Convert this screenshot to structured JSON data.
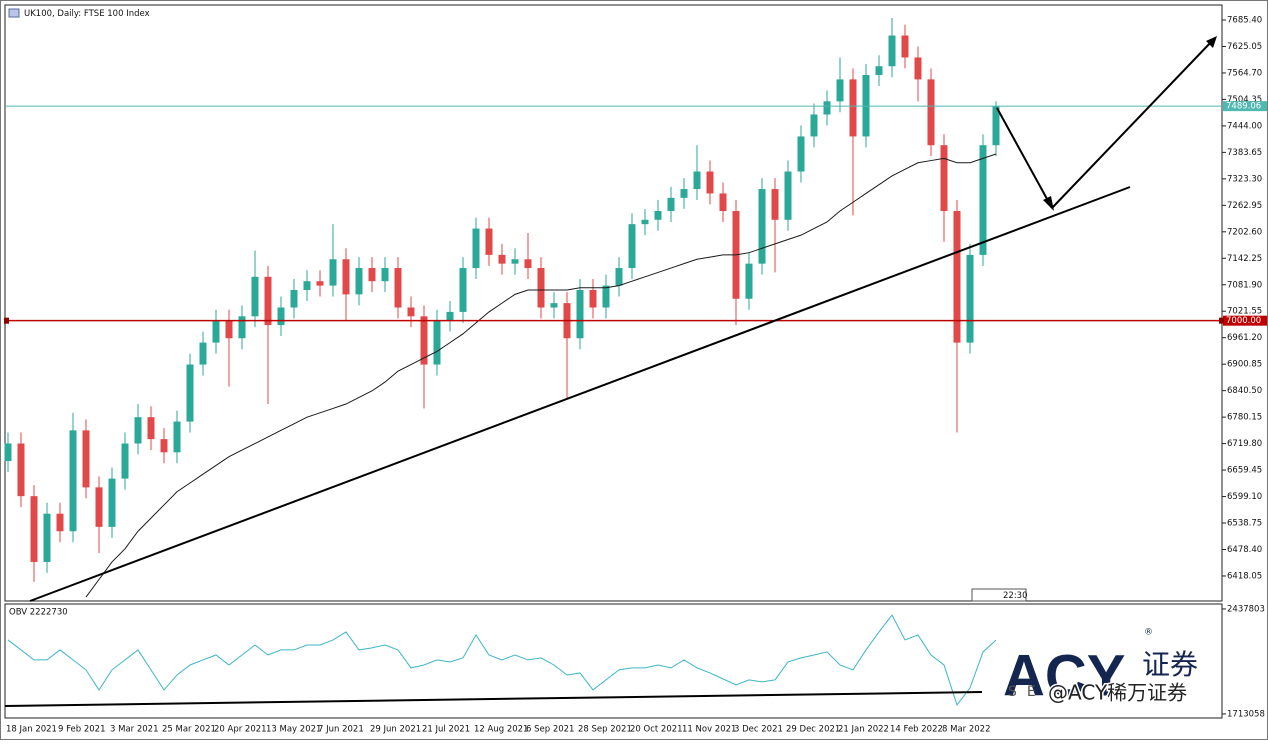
{
  "header": {
    "title": "UK100, Daily: FTSE 100 Index"
  },
  "chart_data": [
    {
      "type": "candlestick",
      "categories": [
        "18 Jan 2021",
        null,
        null,
        null,
        "9 Feb 2021",
        null,
        null,
        null,
        "3 Mar 2021",
        null,
        null,
        null,
        "25 Mar 2021",
        null,
        null,
        null,
        "20 Apr 2021",
        null,
        null,
        null,
        "13 May 2021",
        null,
        null,
        null,
        "7 Jun 2021",
        null,
        null,
        null,
        "29 Jun 2021",
        null,
        null,
        null,
        "21 Jul 2021",
        null,
        null,
        null,
        "12 Aug 2021",
        null,
        null,
        null,
        "6 Sep 2021",
        null,
        null,
        null,
        "28 Sep 2021",
        null,
        null,
        null,
        "20 Oct 2021",
        null,
        null,
        null,
        "11 Nov 2021",
        null,
        null,
        null,
        "3 Dec 2021",
        null,
        null,
        null,
        "29 Dec 2021",
        null,
        null,
        null,
        "21 Jan 2022",
        null,
        null,
        null,
        "14 Feb 2022",
        null,
        null,
        null,
        "8 Mar 2022",
        null,
        null,
        null,
        null
      ],
      "open": [
        6680,
        6720,
        6600,
        6450,
        6560,
        6520,
        6750,
        6620,
        6530,
        6640,
        6720,
        6780,
        6730,
        6700,
        6770,
        6900,
        6950,
        7000,
        6960,
        7010,
        7100,
        6990,
        7030,
        7070,
        7090,
        7080,
        7140,
        7060,
        7120,
        7090,
        7120,
        7030,
        7010,
        6900,
        7000,
        7020,
        7120,
        7210,
        7150,
        7130,
        7140,
        7120,
        7030,
        7040,
        6960,
        7070,
        7030,
        7080,
        7120,
        7220,
        7230,
        7250,
        7280,
        7300,
        7340,
        7290,
        7250,
        7050,
        7130,
        7300,
        7230,
        7340,
        7420,
        7470,
        7500,
        7550,
        7420,
        7560,
        7580,
        7650,
        7600,
        7550,
        7400,
        7250,
        6950,
        7150,
        7400
      ],
      "high": [
        6745,
        6745,
        6625,
        6585,
        6585,
        6790,
        6775,
        6645,
        6665,
        6745,
        6810,
        6805,
        6755,
        6795,
        6925,
        6975,
        7025,
        7025,
        7035,
        7160,
        7125,
        7055,
        7095,
        7115,
        7115,
        7220,
        7165,
        7145,
        7145,
        7145,
        7145,
        7055,
        7035,
        7025,
        7045,
        7145,
        7235,
        7235,
        7175,
        7165,
        7200,
        7145,
        7065,
        7065,
        7095,
        7095,
        7105,
        7145,
        7245,
        7255,
        7275,
        7305,
        7325,
        7400,
        7365,
        7315,
        7275,
        7155,
        7325,
        7325,
        7365,
        7445,
        7495,
        7525,
        7600,
        7575,
        7585,
        7605,
        7690,
        7675,
        7625,
        7575,
        7425,
        7275,
        7175,
        7425,
        7500
      ],
      "low": [
        6655,
        6575,
        6405,
        6425,
        6495,
        6495,
        6595,
        6470,
        6505,
        6615,
        6695,
        6705,
        6675,
        6675,
        6745,
        6875,
        6925,
        6850,
        6935,
        6985,
        6810,
        6965,
        7005,
        7045,
        7055,
        7055,
        7000,
        7035,
        7065,
        7065,
        7005,
        6985,
        6800,
        6875,
        6975,
        6995,
        7095,
        7125,
        7105,
        7105,
        7095,
        7005,
        7005,
        6820,
        6935,
        7005,
        7005,
        7055,
        7095,
        7195,
        7205,
        7225,
        7255,
        7275,
        7265,
        7225,
        6990,
        7025,
        7105,
        7110,
        7205,
        7315,
        7395,
        7445,
        7475,
        7240,
        7395,
        7535,
        7555,
        7575,
        7500,
        7375,
        7180,
        6745,
        6925,
        7125,
        7375
      ],
      "close": [
        6720,
        6600,
        6450,
        6560,
        6520,
        6750,
        6620,
        6530,
        6640,
        6720,
        6780,
        6730,
        6700,
        6770,
        6900,
        6950,
        7000,
        6960,
        7010,
        7100,
        6990,
        7030,
        7070,
        7090,
        7080,
        7140,
        7060,
        7120,
        7090,
        7120,
        7030,
        7010,
        6900,
        7000,
        7020,
        7120,
        7210,
        7150,
        7130,
        7140,
        7120,
        7030,
        7040,
        6960,
        7070,
        7030,
        7080,
        7120,
        7220,
        7230,
        7250,
        7280,
        7300,
        7340,
        7290,
        7250,
        7050,
        7130,
        7300,
        7230,
        7340,
        7420,
        7470,
        7500,
        7550,
        7420,
        7560,
        7580,
        7650,
        7600,
        7550,
        7400,
        7250,
        6950,
        7150,
        7400,
        7489.06
      ],
      "ma": [
        null,
        null,
        null,
        null,
        null,
        null,
        6370,
        6410,
        6450,
        6480,
        6520,
        6550,
        6580,
        6610,
        6630,
        6650,
        6670,
        6690,
        6705,
        6720,
        6735,
        6750,
        6765,
        6780,
        6790,
        6800,
        6810,
        6825,
        6840,
        6860,
        6885,
        6900,
        6915,
        6930,
        6950,
        6970,
        6995,
        7020,
        7040,
        7060,
        7070,
        7070,
        7070,
        7070,
        7075,
        7075,
        7075,
        7080,
        7090,
        7100,
        7110,
        7120,
        7130,
        7140,
        7145,
        7150,
        7150,
        7155,
        7165,
        7175,
        7185,
        7195,
        7210,
        7225,
        7250,
        7270,
        7290,
        7310,
        7330,
        7345,
        7360,
        7365,
        7370,
        7360,
        7360,
        7370,
        7380
      ],
      "ma_color": "#1a1a1a",
      "up_color": "#2aa898",
      "down_color": "#e0484a",
      "ylim": [
        6361,
        7719.6
      ],
      "yticks": [
        {
          "value": 7685.4,
          "label": "7685.40"
        },
        {
          "value": 7625.05,
          "label": "7625.05"
        },
        {
          "value": 7564.7,
          "label": "7564.70"
        },
        {
          "value": 7504.35,
          "label": "7504.35"
        },
        {
          "value": 7444,
          "label": "7444.00"
        },
        {
          "value": 7383.65,
          "label": "7383.65"
        },
        {
          "value": 7323.3,
          "label": "7323.30"
        },
        {
          "value": 7262.95,
          "label": "7262.95"
        },
        {
          "value": 7202.6,
          "label": "7202.60"
        },
        {
          "value": 7142.25,
          "label": "7142.25"
        },
        {
          "value": 7081.9,
          "label": "7081.90"
        },
        {
          "value": 7021.55,
          "label": "7021.55"
        },
        {
          "value": 6961.2,
          "label": "6961.20"
        },
        {
          "value": 6900.85,
          "label": "6900.85"
        },
        {
          "value": 6840.5,
          "label": "6840.50"
        },
        {
          "value": 6780.15,
          "label": "6780.15"
        },
        {
          "value": 6719.8,
          "label": "6719.80"
        },
        {
          "value": 6659.45,
          "label": "6659.45"
        },
        {
          "value": 6599.1,
          "label": "6599.10"
        },
        {
          "value": 6538.75,
          "label": "6538.75"
        },
        {
          "value": 6478.4,
          "label": "6478.40"
        },
        {
          "value": 6418.05,
          "label": "6418.05"
        }
      ],
      "hlines": [
        {
          "value": 7489.06,
          "label": "7489.06",
          "color": "#4fb8b0"
        },
        {
          "value": 7000,
          "label": "7000.00",
          "color": "#c00000"
        }
      ],
      "time_label": "22:30"
    },
    {
      "type": "line",
      "title": "OBV 2222730",
      "color": "#3cb6c8",
      "values": [
        2224000,
        2155000,
        2086000,
        2086000,
        2155000,
        2086000,
        2017000,
        1879000,
        2017000,
        2086000,
        2155000,
        2017000,
        1879000,
        1982000,
        2051000,
        2086000,
        2120000,
        2051000,
        2120000,
        2189000,
        2120000,
        2155000,
        2155000,
        2189000,
        2189000,
        2224000,
        2279000,
        2155000,
        2169000,
        2189000,
        2155000,
        2031000,
        2051000,
        2086000,
        2072000,
        2100000,
        2258000,
        2120000,
        2086000,
        2120000,
        2086000,
        2100000,
        2051000,
        1982000,
        1996000,
        1879000,
        1948000,
        2017000,
        2031000,
        2031000,
        2051000,
        2031000,
        2086000,
        2031000,
        1996000,
        1955000,
        1913000,
        1948000,
        1934000,
        1948000,
        2072000,
        2100000,
        2120000,
        2141000,
        2051000,
        2017000,
        2155000,
        2279000,
        2396000,
        2224000,
        2258000,
        2120000,
        2051000,
        1775000,
        1893000,
        2141000,
        2222730
      ],
      "ylim": [
        1685000,
        2472000
      ],
      "yticks": [
        2437803,
        1713058
      ]
    }
  ],
  "watermark": {
    "logo": "ACY",
    "logo_suffix": "证券",
    "registered": "®",
    "logo_sub": "SE",
    "handle": "@ACY稀万证券"
  }
}
